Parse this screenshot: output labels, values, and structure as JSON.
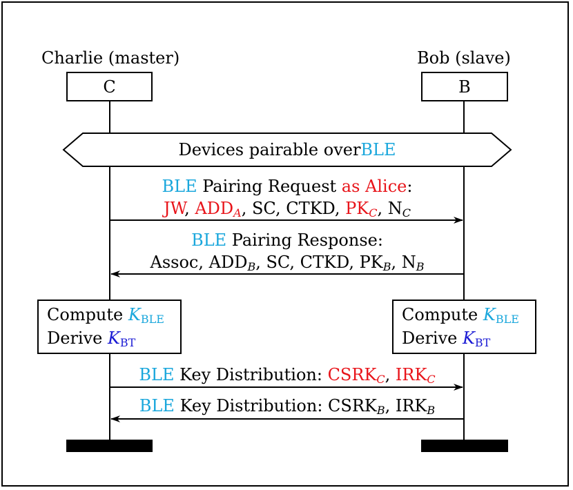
{
  "participants": {
    "left": {
      "role_label": "Charlie (master)",
      "box_label": "C"
    },
    "right": {
      "role_label": "Bob (slave)",
      "box_label": "B"
    }
  },
  "banner": {
    "text": "Devices pairable over ",
    "ble": "BLE"
  },
  "msg1": {
    "ble": "BLE",
    "title": " Pairing Request ",
    "as_alice": "as Alice",
    "colon": ":",
    "jw": "JW",
    "sep1": ", ",
    "add": "ADD",
    "add_sub": "A",
    "rest": ", SC, CTKD, ",
    "pk": "PK",
    "pk_sub": "C",
    "sep2": ", N",
    "n_sub": "C"
  },
  "msg2": {
    "ble": "BLE",
    "title": " Pairing Response:",
    "line2_a": "Assoc, ADD",
    "add_sub": "B",
    "line2_b": ", SC, CTKD, PK",
    "pk_sub": "B",
    "line2_c": ", N",
    "n_sub": "B"
  },
  "compute": {
    "line1": "Compute ",
    "k": "K",
    "k1_sub": "BLE",
    "line2": "Derive ",
    "k2_sub": "BT"
  },
  "msg3": {
    "ble": "BLE",
    "title": " Key Distribution: ",
    "csrk": "CSRK",
    "csrk_sub": "C",
    "sep": ", ",
    "irk": "IRK",
    "irk_sub": "C"
  },
  "msg4": {
    "ble": "BLE",
    "title": " Key Distribution: CSRK",
    "csrk_sub": "B",
    "sep": ", IRK",
    "irk_sub": "B"
  },
  "colors": {
    "ble": "#1aa7dc",
    "red": "#e8141a",
    "kbt": "#1a1ad4"
  }
}
